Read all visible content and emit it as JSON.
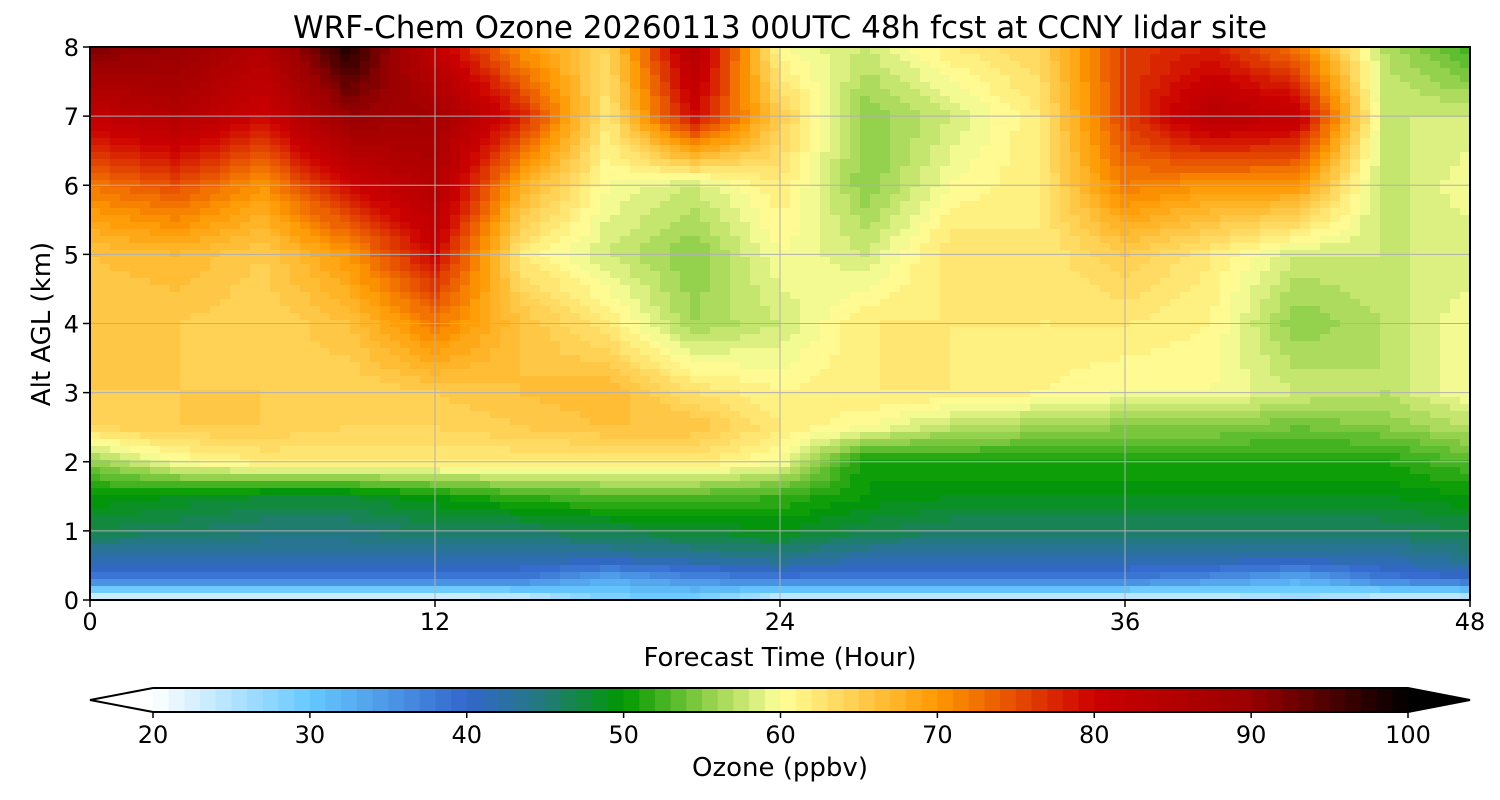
{
  "chart_data": {
    "type": "heatmap",
    "title": "WRF-Chem Ozone  20260113 00UTC 48h fcst at CCNY lidar site",
    "xlabel": "Forecast Time (Hour)",
    "ylabel": "Alt AGL (km)",
    "xlim": [
      0,
      48
    ],
    "ylim": [
      0,
      8
    ],
    "xticks": [
      "0",
      "12",
      "24",
      "36",
      "48"
    ],
    "xtick_values": [
      0,
      12,
      24,
      36,
      48
    ],
    "yticks": [
      "0",
      "1",
      "2",
      "3",
      "4",
      "5",
      "6",
      "7",
      "8"
    ],
    "ytick_values": [
      0,
      1,
      2,
      3,
      4,
      5,
      6,
      7,
      8
    ],
    "grid": true,
    "x": [
      0,
      3,
      6,
      9,
      12,
      15,
      18,
      21,
      24,
      27,
      30,
      33,
      36,
      39,
      42,
      45,
      48
    ],
    "y": [
      0,
      0.3,
      0.6,
      1,
      1.5,
      2,
      2.5,
      3,
      4,
      5,
      6,
      7,
      8
    ],
    "z_by_time": [
      [
        20,
        38,
        42,
        47,
        50,
        55,
        64,
        65,
        65,
        66,
        72,
        82,
        92
      ],
      [
        20,
        38,
        42,
        46,
        49,
        60,
        65,
        65,
        65,
        67,
        75,
        85,
        90
      ],
      [
        20,
        38,
        42,
        45,
        48,
        62,
        65,
        65,
        64,
        65,
        70,
        80,
        85
      ],
      [
        20,
        38,
        42,
        45,
        48,
        62,
        64,
        64,
        66,
        70,
        80,
        90,
        98
      ],
      [
        20,
        38,
        42,
        46,
        50,
        62,
        64,
        65,
        72,
        80,
        85,
        88,
        82
      ],
      [
        22,
        38,
        42,
        46,
        52,
        62,
        65,
        66,
        66,
        62,
        68,
        78,
        70
      ],
      [
        28,
        33,
        42,
        47,
        53,
        62,
        66,
        67,
        62,
        58,
        60,
        62,
        64
      ],
      [
        28,
        36,
        43,
        48,
        53,
        62,
        66,
        63,
        56,
        55,
        58,
        80,
        85
      ],
      [
        22,
        38,
        44,
        49,
        52,
        60,
        62,
        61,
        58,
        60,
        62,
        65,
        60
      ],
      [
        22,
        38,
        42,
        47,
        50,
        50,
        60,
        62,
        62,
        58,
        55,
        55,
        58
      ],
      [
        22,
        38,
        42,
        46,
        49,
        51,
        57,
        62,
        62,
        63,
        60,
        58,
        62
      ],
      [
        22,
        38,
        42,
        46,
        49,
        51,
        56,
        61,
        62,
        62,
        62,
        62,
        64
      ],
      [
        22,
        38,
        42,
        46,
        49,
        51,
        55,
        60,
        62,
        65,
        72,
        76,
        76
      ],
      [
        22,
        36,
        42,
        46,
        49,
        51,
        55,
        60,
        61,
        62,
        70,
        84,
        78
      ],
      [
        25,
        33,
        42,
        46,
        49,
        51,
        54,
        58,
        55,
        58,
        70,
        82,
        72
      ],
      [
        22,
        38,
        42,
        46,
        49,
        51,
        55,
        57,
        57,
        58,
        57,
        58,
        57
      ],
      [
        22,
        40,
        44,
        47,
        50,
        53,
        57,
        60,
        60,
        58,
        60,
        58,
        52
      ]
    ],
    "colorbar": {
      "label": "Ozone  (ppbv)",
      "range": [
        20,
        100
      ],
      "step": 1,
      "extend": "both",
      "ticks": [
        "20",
        "30",
        "40",
        "50",
        "60",
        "70",
        "80",
        "90",
        "100"
      ],
      "tick_values": [
        20,
        30,
        40,
        50,
        60,
        70,
        80,
        90,
        100
      ],
      "anchors": [
        {
          "v": 20,
          "c": "#ffffff"
        },
        {
          "v": 30,
          "c": "#66c8ff"
        },
        {
          "v": 40,
          "c": "#3366cc"
        },
        {
          "v": 45,
          "c": "#227a7a"
        },
        {
          "v": 50,
          "c": "#009900"
        },
        {
          "v": 55,
          "c": "#88cc44"
        },
        {
          "v": 60,
          "c": "#ffff99"
        },
        {
          "v": 70,
          "c": "#ff9900"
        },
        {
          "v": 80,
          "c": "#cc0000"
        },
        {
          "v": 90,
          "c": "#990000"
        },
        {
          "v": 100,
          "c": "#000000"
        }
      ]
    }
  }
}
